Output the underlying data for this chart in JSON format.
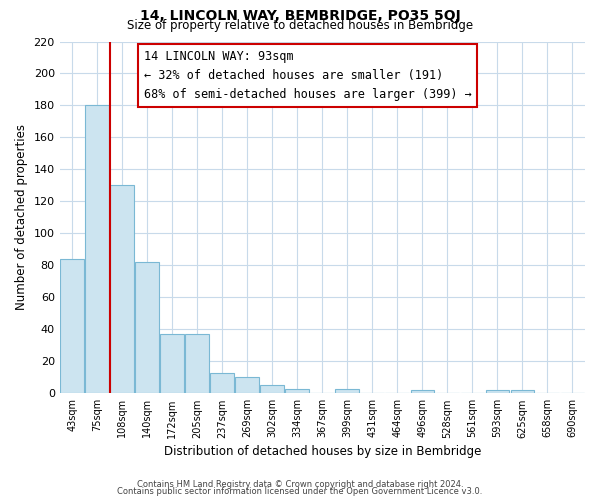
{
  "title": "14, LINCOLN WAY, BEMBRIDGE, PO35 5QJ",
  "subtitle": "Size of property relative to detached houses in Bembridge",
  "xlabel": "Distribution of detached houses by size in Bembridge",
  "ylabel": "Number of detached properties",
  "bin_labels": [
    "43sqm",
    "75sqm",
    "108sqm",
    "140sqm",
    "172sqm",
    "205sqm",
    "237sqm",
    "269sqm",
    "302sqm",
    "334sqm",
    "367sqm",
    "399sqm",
    "431sqm",
    "464sqm",
    "496sqm",
    "528sqm",
    "561sqm",
    "593sqm",
    "625sqm",
    "658sqm",
    "690sqm"
  ],
  "bar_values": [
    84,
    180,
    130,
    82,
    37,
    37,
    13,
    10,
    5,
    3,
    0,
    3,
    0,
    0,
    2,
    0,
    0,
    2,
    2,
    0,
    0
  ],
  "bar_color": "#cce4f0",
  "bar_edge_color": "#7ab8d4",
  "vline_color": "#cc0000",
  "vline_x_index": 1.5,
  "ylim": [
    0,
    220
  ],
  "yticks": [
    0,
    20,
    40,
    60,
    80,
    100,
    120,
    140,
    160,
    180,
    200,
    220
  ],
  "annotation_title": "14 LINCOLN WAY: 93sqm",
  "annotation_line1": "← 32% of detached houses are smaller (191)",
  "annotation_line2": "68% of semi-detached houses are larger (399) →",
  "footer_line1": "Contains HM Land Registry data © Crown copyright and database right 2024.",
  "footer_line2": "Contains public sector information licensed under the Open Government Licence v3.0.",
  "background_color": "#ffffff",
  "grid_color": "#c8daea"
}
